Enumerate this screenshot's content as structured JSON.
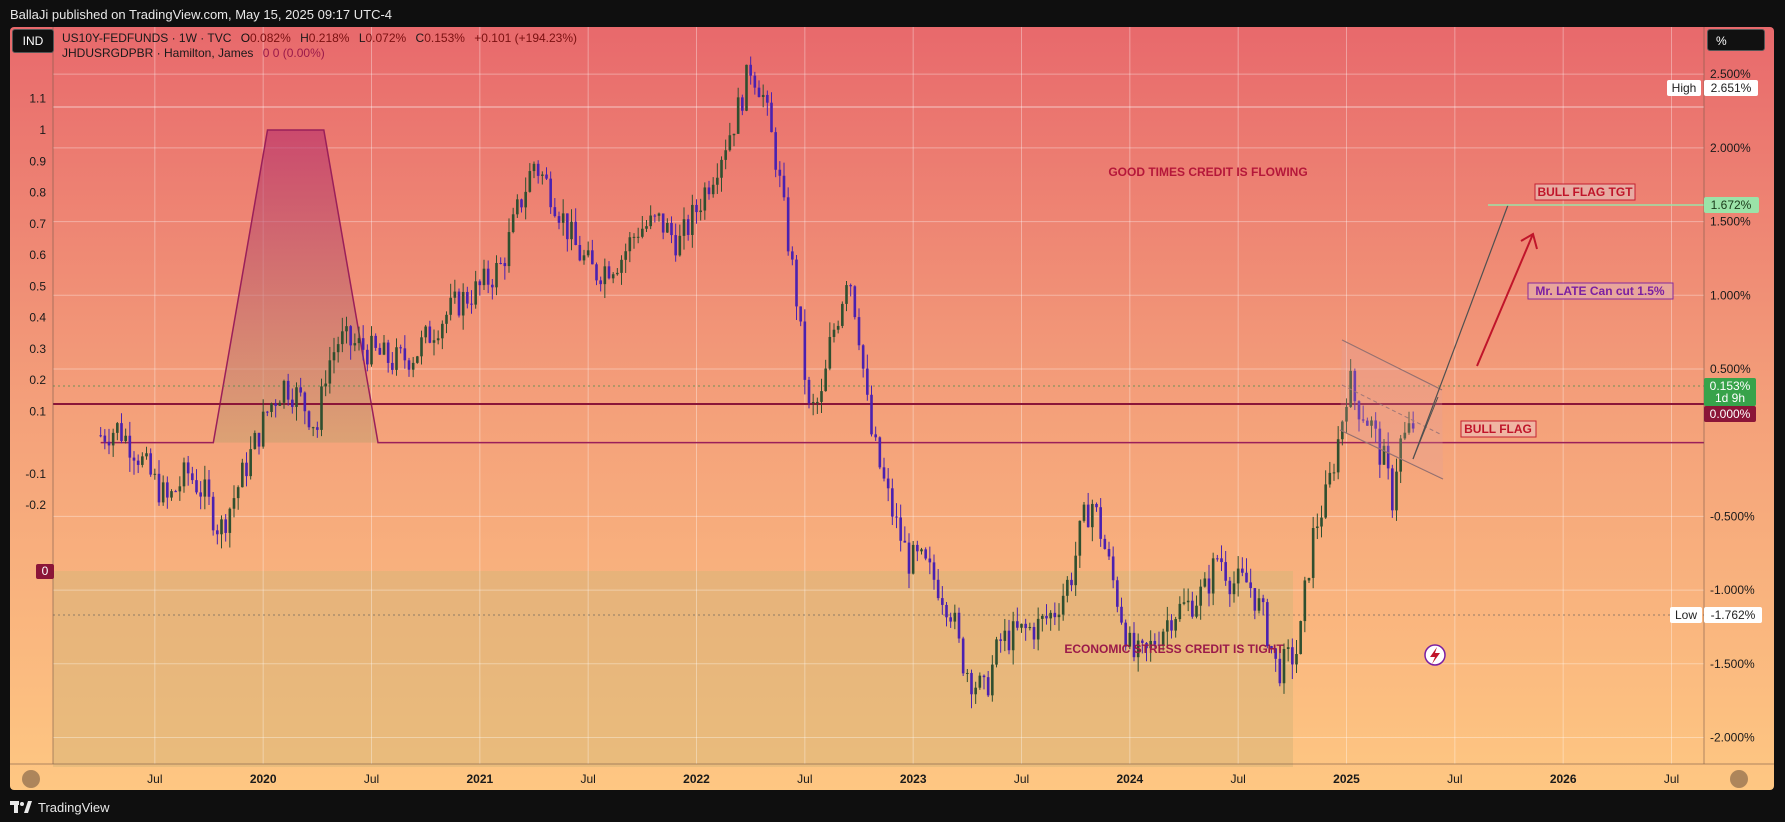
{
  "header": {
    "publish_line": "BallaJi published on TradingView.com, May 15, 2025 09:17 UTC-4"
  },
  "footer": {
    "brand": "TradingView"
  },
  "legend": {
    "ind_button": "IND",
    "unit_button": "%",
    "main_symbol": "US10Y-FEDFUNDS · 1W · TVC",
    "ohlc": [
      {
        "label": "O",
        "value": "0.082%"
      },
      {
        "label": "H",
        "value": "0.218%"
      },
      {
        "label": "L",
        "value": "0.072%"
      },
      {
        "label": "C",
        "value": "0.153%"
      }
    ],
    "change": "+0.101 (+194.23%)",
    "indicator_name": "JHDUSRGDPBR · Hamilton, James",
    "indicator_values": "0  0 (0.00%)"
  },
  "chart_data": {
    "type": "candlestick",
    "x_ticks": [
      {
        "label": "Jul",
        "t": 0.25,
        "bold": false
      },
      {
        "label": "2020",
        "t": 0.75,
        "bold": true
      },
      {
        "label": "Jul",
        "t": 1.25,
        "bold": false
      },
      {
        "label": "2021",
        "t": 1.75,
        "bold": true
      },
      {
        "label": "Jul",
        "t": 2.25,
        "bold": false
      },
      {
        "label": "2022",
        "t": 2.75,
        "bold": true
      },
      {
        "label": "Jul",
        "t": 3.25,
        "bold": false
      },
      {
        "label": "2023",
        "t": 3.75,
        "bold": true
      },
      {
        "label": "Jul",
        "t": 4.25,
        "bold": false
      },
      {
        "label": "2024",
        "t": 4.75,
        "bold": true
      },
      {
        "label": "Jul",
        "t": 5.25,
        "bold": false
      },
      {
        "label": "2025",
        "t": 5.75,
        "bold": true
      },
      {
        "label": "Jul",
        "t": 6.25,
        "bold": false
      },
      {
        "label": "2026",
        "t": 6.75,
        "bold": true
      },
      {
        "label": "Jul",
        "t": 7.25,
        "bold": false
      }
    ],
    "right_axis": {
      "ticks": [
        "2.500%",
        "2.000%",
        "1.500%",
        "1.000%",
        "0.500%",
        "-0.500%",
        "-1.000%",
        "-1.500%",
        "-2.000%"
      ],
      "tick_values": [
        2.5,
        2.0,
        1.5,
        1.0,
        0.5,
        -0.5,
        -1.0,
        -1.5,
        -2.0
      ],
      "range": [
        -2.18,
        2.82
      ]
    },
    "left_axis": {
      "ticks": [
        "1.1",
        "1",
        "0.9",
        "0.8",
        "0.7",
        "0.6",
        "0.5",
        "0.4",
        "0.3",
        "0.2",
        "0.1",
        "0",
        "-0.1",
        "-0.2"
      ],
      "tick_values": [
        1.1,
        1.0,
        0.9,
        0.8,
        0.7,
        0.6,
        0.5,
        0.4,
        0.3,
        0.2,
        0.1,
        0.0,
        -0.1,
        -0.2
      ],
      "range": [
        -0.22,
        1.22
      ],
      "zero_badge": "0"
    },
    "price_labels": {
      "high": {
        "tag": "High",
        "value": "2.651%",
        "v": 2.651
      },
      "low": {
        "tag": "Low",
        "value": "-1.762%",
        "v": -1.762
      },
      "current": {
        "value": "0.153%",
        "countdown": "1d 9h",
        "v": 0.153
      },
      "zero": {
        "value": "0.000%",
        "v": 0.0
      },
      "target": {
        "value": "1.672%",
        "v": 1.672
      }
    },
    "annotations": {
      "good_times": "GOOD TIMES CREDIT IS FLOWING",
      "stress": "ECONOMIC STRESS CREDIT IS TIGHT",
      "bull_flag_tgt": "BULL FLAG TGT",
      "mr_late": "Mr. LATE Can cut 1.5%",
      "bull_flag": "BULL FLAG"
    },
    "series_keypoints": [
      [
        0.0,
        0.05
      ],
      [
        0.08,
        0.1
      ],
      [
        0.16,
        -0.05
      ],
      [
        0.24,
        -0.25
      ],
      [
        0.31,
        -0.4
      ],
      [
        0.4,
        -0.2
      ],
      [
        0.48,
        -0.35
      ],
      [
        0.55,
        -0.6
      ],
      [
        0.62,
        -0.35
      ],
      [
        0.7,
        -0.05
      ],
      [
        0.78,
        0.25
      ],
      [
        0.85,
        0.4
      ],
      [
        0.92,
        0.3
      ],
      [
        1.0,
        0.1
      ],
      [
        1.04,
        0.5
      ],
      [
        1.1,
        0.7
      ],
      [
        1.2,
        0.65
      ],
      [
        1.35,
        0.55
      ],
      [
        1.45,
        0.6
      ],
      [
        1.55,
        0.8
      ],
      [
        1.65,
        0.95
      ],
      [
        1.75,
        1.05
      ],
      [
        1.85,
        1.2
      ],
      [
        1.93,
        1.6
      ],
      [
        2.0,
        1.9
      ],
      [
        2.08,
        1.7
      ],
      [
        2.2,
        1.3
      ],
      [
        2.28,
        1.15
      ],
      [
        2.4,
        1.25
      ],
      [
        2.48,
        1.45
      ],
      [
        2.58,
        1.5
      ],
      [
        2.67,
        1.35
      ],
      [
        2.74,
        1.55
      ],
      [
        2.83,
        1.85
      ],
      [
        2.93,
        2.2
      ],
      [
        3.0,
        2.55
      ],
      [
        3.05,
        2.4
      ],
      [
        3.12,
        1.9
      ],
      [
        3.17,
        1.4
      ],
      [
        3.21,
        1.0
      ],
      [
        3.27,
        0.2
      ],
      [
        3.33,
        0.3
      ],
      [
        3.37,
        0.7
      ],
      [
        3.41,
        0.9
      ],
      [
        3.45,
        1.2
      ],
      [
        3.5,
        0.75
      ],
      [
        3.55,
        0.1
      ],
      [
        3.62,
        -0.3
      ],
      [
        3.67,
        -0.55
      ],
      [
        3.73,
        -0.8
      ],
      [
        3.78,
        -0.8
      ],
      [
        3.86,
        -0.95
      ],
      [
        3.93,
        -1.15
      ],
      [
        3.97,
        -1.45
      ],
      [
        4.02,
        -1.6
      ],
      [
        4.08,
        -1.7
      ],
      [
        4.15,
        -1.35
      ],
      [
        4.22,
        -1.3
      ],
      [
        4.32,
        -1.25
      ],
      [
        4.4,
        -1.15
      ],
      [
        4.48,
        -0.9
      ],
      [
        4.53,
        -0.55
      ],
      [
        4.58,
        -0.4
      ],
      [
        4.64,
        -0.75
      ],
      [
        4.7,
        -1.1
      ],
      [
        4.76,
        -1.45
      ],
      [
        4.82,
        -1.45
      ],
      [
        4.88,
        -1.3
      ],
      [
        4.95,
        -1.15
      ],
      [
        5.02,
        -1.1
      ],
      [
        5.1,
        -1.0
      ],
      [
        5.16,
        -0.75
      ],
      [
        5.22,
        -0.95
      ],
      [
        5.3,
        -0.95
      ],
      [
        5.37,
        -1.2
      ],
      [
        5.43,
        -1.55
      ],
      [
        5.5,
        -1.45
      ],
      [
        5.53,
        -1.4
      ],
      [
        5.56,
        -1.0
      ],
      [
        5.6,
        -0.6
      ],
      [
        5.66,
        -0.35
      ],
      [
        5.71,
        0.0
      ],
      [
        5.74,
        0.25
      ],
      [
        5.76,
        0.45
      ],
      [
        5.79,
        0.28
      ],
      [
        5.83,
        0.2
      ],
      [
        5.87,
        0.1
      ],
      [
        5.9,
        -0.05
      ],
      [
        5.93,
        -0.15
      ],
      [
        5.96,
        -0.4
      ],
      [
        5.98,
        -0.15
      ],
      [
        6.0,
        0.0
      ],
      [
        6.03,
        0.05
      ],
      [
        6.07,
        0.153
      ]
    ],
    "recession_probability": [
      [
        0.0,
        0.0
      ],
      [
        0.52,
        0.0
      ],
      [
        0.77,
        1.0
      ],
      [
        1.03,
        1.0
      ],
      [
        1.28,
        0.0
      ],
      [
        7.4,
        0.0
      ]
    ],
    "x_range": [
      -0.22,
      7.4
    ]
  },
  "colors": {
    "bg_top": "#e8696c",
    "bg_bottom": "#fec782",
    "candle_up": "#2f4f2f",
    "candle_down": "#4a21b0",
    "hamilton_line": "#9a1f5a",
    "hamilton_fill": "#a02060",
    "zero_line": "#8b1538",
    "annotation_text": "#b5173a",
    "mr_late_text": "#7b1fa2",
    "arrow": "#c0152a",
    "target_line": "#9be3a8",
    "current_badge": "#37a34a"
  }
}
